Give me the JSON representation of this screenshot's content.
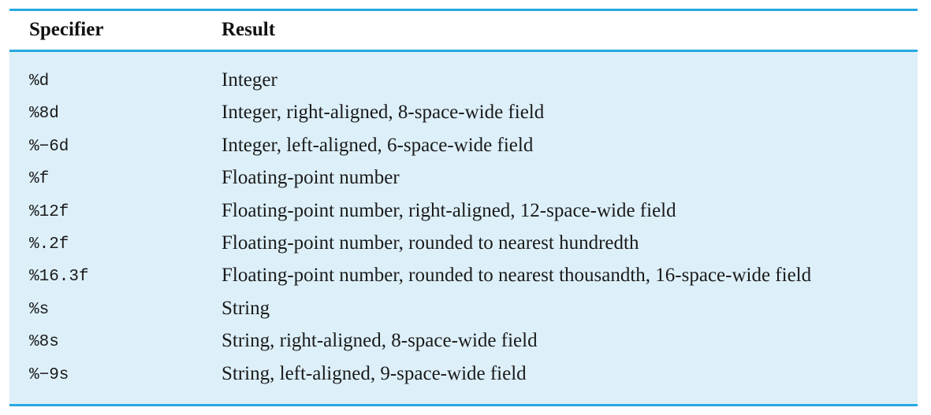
{
  "table": {
    "headers": {
      "specifier": "Specifier",
      "result": "Result"
    },
    "rows": [
      {
        "specifier": "%d",
        "result": "Integer"
      },
      {
        "specifier": "%8d",
        "result": "Integer, right-aligned, 8-space-wide field"
      },
      {
        "specifier": "%−6d",
        "result": "Integer, left-aligned, 6-space-wide field"
      },
      {
        "specifier": "%f",
        "result": "Floating-point number"
      },
      {
        "specifier": "%12f",
        "result": "Floating-point number, right-aligned, 12-space-wide field"
      },
      {
        "specifier": "%.2f",
        "result": "Floating-point number, rounded to nearest hundredth"
      },
      {
        "specifier": "%16.3f",
        "result": "Floating-point number, rounded to nearest thousandth, 16-space-wide field"
      },
      {
        "specifier": "%s",
        "result": "String"
      },
      {
        "specifier": "%8s",
        "result": "String, right-aligned, 8-space-wide field"
      },
      {
        "specifier": "%−9s",
        "result": "String, left-aligned, 9-space-wide field"
      }
    ]
  },
  "colors": {
    "rule": "#27a9e1",
    "body_background": "#ddf0fa"
  }
}
